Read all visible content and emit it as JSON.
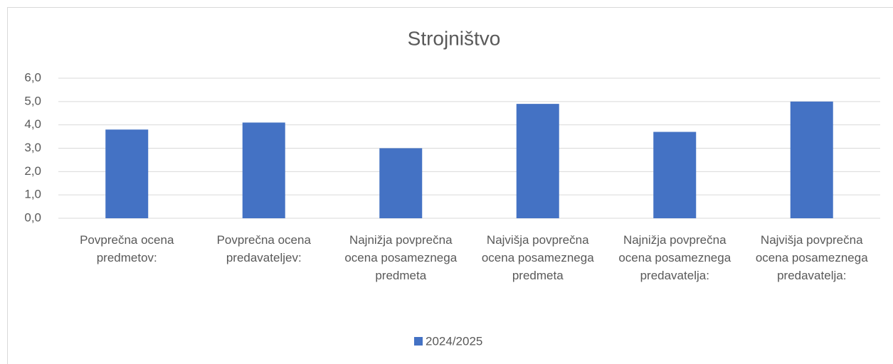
{
  "chart_data": {
    "type": "bar",
    "title": "Strojništvo",
    "categories": [
      "Povprečna ocena predmetov:",
      "Povprečna ocena predavateljev:",
      "Najnižja povprečna ocena posameznega predmeta",
      "Najvišja povprečna ocena posameznega predmeta",
      "Najnižja povprečna ocena posameznega predavatelja:",
      "Najvišja povprečna ocena posameznega predavatelja:"
    ],
    "series": [
      {
        "name": "2024/2025",
        "color": "#4472c4",
        "values": [
          3.8,
          4.1,
          3.0,
          4.9,
          3.7,
          5.0
        ]
      }
    ],
    "ylim": [
      0,
      6
    ],
    "yticks": [
      {
        "value": 0,
        "label": "0,0"
      },
      {
        "value": 1,
        "label": "1,0"
      },
      {
        "value": 2,
        "label": "2,0"
      },
      {
        "value": 3,
        "label": "3,0"
      },
      {
        "value": 4,
        "label": "4,0"
      },
      {
        "value": 5,
        "label": "5,0"
      },
      {
        "value": 6,
        "label": "6,0"
      }
    ],
    "grid": true,
    "legend": "bottom"
  }
}
